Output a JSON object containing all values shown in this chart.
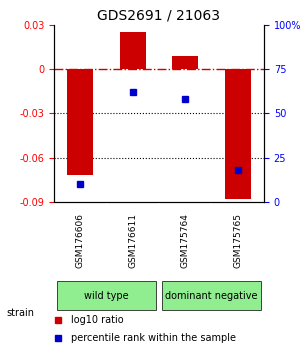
{
  "title": "GDS2691 / 21063",
  "samples": [
    "GSM176606",
    "GSM176611",
    "GSM175764",
    "GSM175765"
  ],
  "log10_ratio": [
    -0.072,
    0.025,
    0.009,
    -0.088
  ],
  "percentile_rank": [
    10,
    62,
    58,
    18
  ],
  "ylim_left": [
    -0.09,
    0.03
  ],
  "ylim_right": [
    0,
    100
  ],
  "yticks_left": [
    -0.09,
    -0.06,
    -0.03,
    0,
    0.03
  ],
  "yticks_right": [
    0,
    25,
    50,
    75,
    100
  ],
  "ytick_labels_left": [
    "-0.09",
    "-0.06",
    "-0.03",
    "0",
    "0.03"
  ],
  "ytick_labels_right": [
    "0",
    "25",
    "50",
    "75",
    "100%"
  ],
  "groups": [
    {
      "label": "wild type",
      "samples": [
        0,
        1
      ],
      "color": "#90EE90"
    },
    {
      "label": "dominant negative",
      "samples": [
        2,
        3
      ],
      "color": "#90EE90"
    }
  ],
  "bar_color": "#CC0000",
  "dot_color": "#0000CC",
  "bar_width": 0.5,
  "legend_bar_label": "log10 ratio",
  "legend_dot_label": "percentile rank within the sample",
  "strain_label": "strain",
  "background_color": "#ffffff",
  "plot_bg_color": "#ffffff",
  "grid_color_dotted": "#000000",
  "zero_line_color": "#CC0000"
}
